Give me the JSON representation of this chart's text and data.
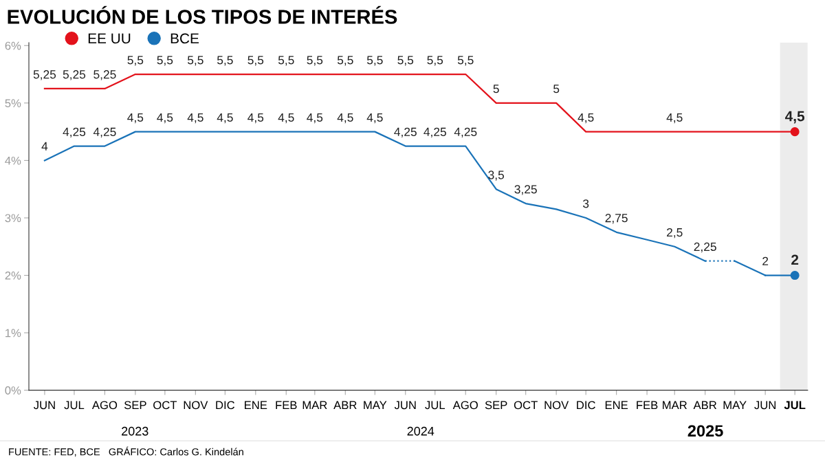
{
  "chart_data": {
    "type": "line",
    "title": "EVOLUCIÓN DE LOS TIPOS DE INTERÉS",
    "x": [
      "2023-06",
      "2023-07",
      "2023-08",
      "2023-09",
      "2023-10",
      "2023-11",
      "2023-12",
      "2024-01",
      "2024-02",
      "2024-03",
      "2024-04",
      "2024-05",
      "2024-06",
      "2024-07",
      "2024-08",
      "2024-09",
      "2024-10",
      "2024-11",
      "2024-12",
      "2025-01",
      "2025-02",
      "2025-03",
      "2025-04",
      "2025-05",
      "2025-06",
      "2025-07"
    ],
    "series": [
      {
        "name": "EE UU",
        "color": "#e3121b",
        "values": [
          5.25,
          5.25,
          5.25,
          5.5,
          5.5,
          5.5,
          5.5,
          5.5,
          5.5,
          5.5,
          5.5,
          5.5,
          5.5,
          5.5,
          5.5,
          5,
          5,
          5,
          4.5,
          4.5,
          4.5,
          4.5,
          4.5,
          4.5,
          4.5,
          4.5
        ],
        "value_labels": [
          "5,25",
          "5,25",
          "5,25",
          "5,5",
          "5,5",
          "5,5",
          "5,5",
          "5,5",
          "5,5",
          "5,5",
          "5,5",
          "5,5",
          "5,5",
          "5,5",
          "5,5",
          "5",
          null,
          "5",
          "4,5",
          null,
          null,
          "4,5",
          null,
          null,
          null,
          "4,5"
        ]
      },
      {
        "name": "BCE",
        "color": "#1a73b8",
        "values": [
          4,
          4.25,
          4.25,
          4.5,
          4.5,
          4.5,
          4.5,
          4.5,
          4.5,
          4.5,
          4.5,
          4.5,
          4.25,
          4.25,
          4.25,
          3.5,
          3.25,
          3.15,
          3,
          2.75,
          2.62,
          2.5,
          2.25,
          null,
          2,
          2
        ],
        "value_labels": [
          "4",
          "4,25",
          "4,25",
          "4,5",
          "4,5",
          "4,5",
          "4,5",
          "4,5",
          "4,5",
          "4,5",
          "4,5",
          "4,5",
          "4,25",
          "4,25",
          "4,25",
          "3,5",
          "3,25",
          null,
          "3",
          "2,75",
          null,
          "2,5",
          "2,25",
          null,
          "2",
          "2"
        ]
      },
      {
        "color": "#1a73b8",
        "line_style": "dotted",
        "values": [
          null,
          null,
          null,
          null,
          null,
          null,
          null,
          null,
          null,
          null,
          null,
          null,
          null,
          null,
          null,
          null,
          null,
          null,
          null,
          null,
          null,
          null,
          2.25,
          2.25,
          null,
          null
        ]
      },
      {
        "color": "#1a73b8",
        "values": [
          null,
          null,
          null,
          null,
          null,
          null,
          null,
          null,
          null,
          null,
          null,
          null,
          null,
          null,
          null,
          null,
          null,
          null,
          null,
          null,
          null,
          null,
          null,
          2.25,
          2,
          null
        ]
      },
      {
        "type": "scatter",
        "marker": "circle",
        "color": "#e3121b",
        "values": [
          null,
          null,
          null,
          null,
          null,
          null,
          null,
          null,
          null,
          null,
          null,
          null,
          null,
          null,
          null,
          null,
          null,
          null,
          null,
          null,
          null,
          null,
          null,
          null,
          null,
          4.5
        ]
      },
      {
        "type": "scatter",
        "marker": "circle",
        "color": "#1a73b8",
        "values": [
          null,
          null,
          null,
          null,
          null,
          null,
          null,
          null,
          null,
          null,
          null,
          null,
          null,
          null,
          null,
          null,
          null,
          null,
          null,
          null,
          null,
          null,
          null,
          null,
          null,
          2
        ]
      }
    ],
    "legend": "top left",
    "grid": false,
    "xlim": [
      "2023-05-16",
      "2025-07-14"
    ],
    "xticks": [
      {
        "value": "2023-06",
        "label": "JUN"
      },
      {
        "value": "2023-07",
        "label": "JUL"
      },
      {
        "value": "2023-08",
        "label": "AGO"
      },
      {
        "value": "2023-09",
        "label": "SEP"
      },
      {
        "value": "2023-10",
        "label": "OCT"
      },
      {
        "value": "2023-11",
        "label": "NOV"
      },
      {
        "value": "2023-12",
        "label": "DIC"
      },
      {
        "value": "2024-01",
        "label": "ENE"
      },
      {
        "value": "2024-02",
        "label": "FEB"
      },
      {
        "value": "2024-03",
        "label": "MAR"
      },
      {
        "value": "2024-04",
        "label": "ABR"
      },
      {
        "value": "2024-05",
        "label": "MAY"
      },
      {
        "value": "2024-06",
        "label": "JUN"
      },
      {
        "value": "2024-07",
        "label": "JUL"
      },
      {
        "value": "2024-08",
        "label": "AGO"
      },
      {
        "value": "2024-09",
        "label": "SEP"
      },
      {
        "value": "2024-10",
        "label": "OCT"
      },
      {
        "value": "2024-11",
        "label": "NOV"
      },
      {
        "value": "2024-12",
        "label": "DIC"
      },
      {
        "value": "2025-01",
        "label": "ENE"
      },
      {
        "value": "2025-02",
        "label": "FEB"
      },
      {
        "value": "2025-03",
        "label": "MAR"
      },
      {
        "value": "2025-04",
        "label": "ABR"
      },
      {
        "value": "2025-05",
        "label": "MAY"
      },
      {
        "value": "2025-06",
        "label": "JUN"
      },
      {
        "value": "2025-07",
        "label": "JUL"
      }
    ],
    "ylim": [
      0,
      6.05
    ],
    "yticks": [
      {
        "value": 0,
        "label": "0%"
      },
      {
        "value": 1,
        "label": "1%"
      },
      {
        "value": 2,
        "label": "2%"
      },
      {
        "value": 3,
        "label": "3%"
      },
      {
        "value": 4,
        "label": "4%"
      },
      {
        "value": 5,
        "label": "5%"
      },
      {
        "value": 6,
        "label": "6%"
      }
    ],
    "bands": [
      {
        "axis": "x",
        "from": "2025-06-16",
        "to": "2025-07-14",
        "color": "#ececec"
      }
    ],
    "annotations": [
      "2023",
      "2024",
      "2025",
      "FUENTE: FED, BCE   GRÁFICO: Carlos G. Kindelán"
    ]
  }
}
